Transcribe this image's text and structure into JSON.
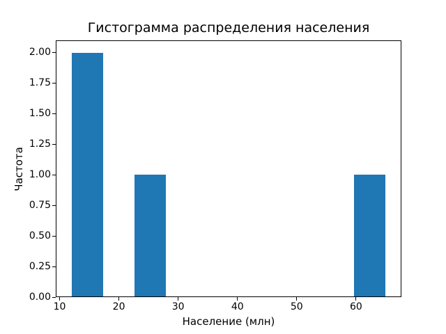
{
  "figure": {
    "title": "Гистограмма распределения населения",
    "xlabel": "Население (млн)",
    "ylabel": "Частота"
  },
  "chart_data": {
    "type": "bar",
    "subtype": "histogram",
    "title": "Гистограмма распределения населения",
    "xlabel": "Население (млн)",
    "ylabel": "Частота",
    "bin_edges": [
      12.0,
      17.3,
      22.6,
      27.9,
      33.2,
      38.5,
      43.8,
      49.1,
      54.4,
      59.7,
      65.0
    ],
    "counts": [
      2,
      0,
      1,
      0,
      0,
      0,
      0,
      0,
      0,
      1
    ],
    "xticks": [
      10,
      20,
      30,
      40,
      50,
      60
    ],
    "xtick_labels": [
      "10",
      "20",
      "30",
      "40",
      "50",
      "60"
    ],
    "ytick_values": [
      0.0,
      0.25,
      0.5,
      0.75,
      1.0,
      1.25,
      1.5,
      1.75,
      2.0
    ],
    "ytick_labels": [
      "0.00",
      "0.25",
      "0.50",
      "0.75",
      "1.00",
      "1.25",
      "1.50",
      "1.75",
      "2.00"
    ],
    "xlim": [
      9.35,
      67.65
    ],
    "ylim": [
      0,
      2.1
    ],
    "bar_color": "#1f77b4",
    "grid": false,
    "legend": false
  }
}
